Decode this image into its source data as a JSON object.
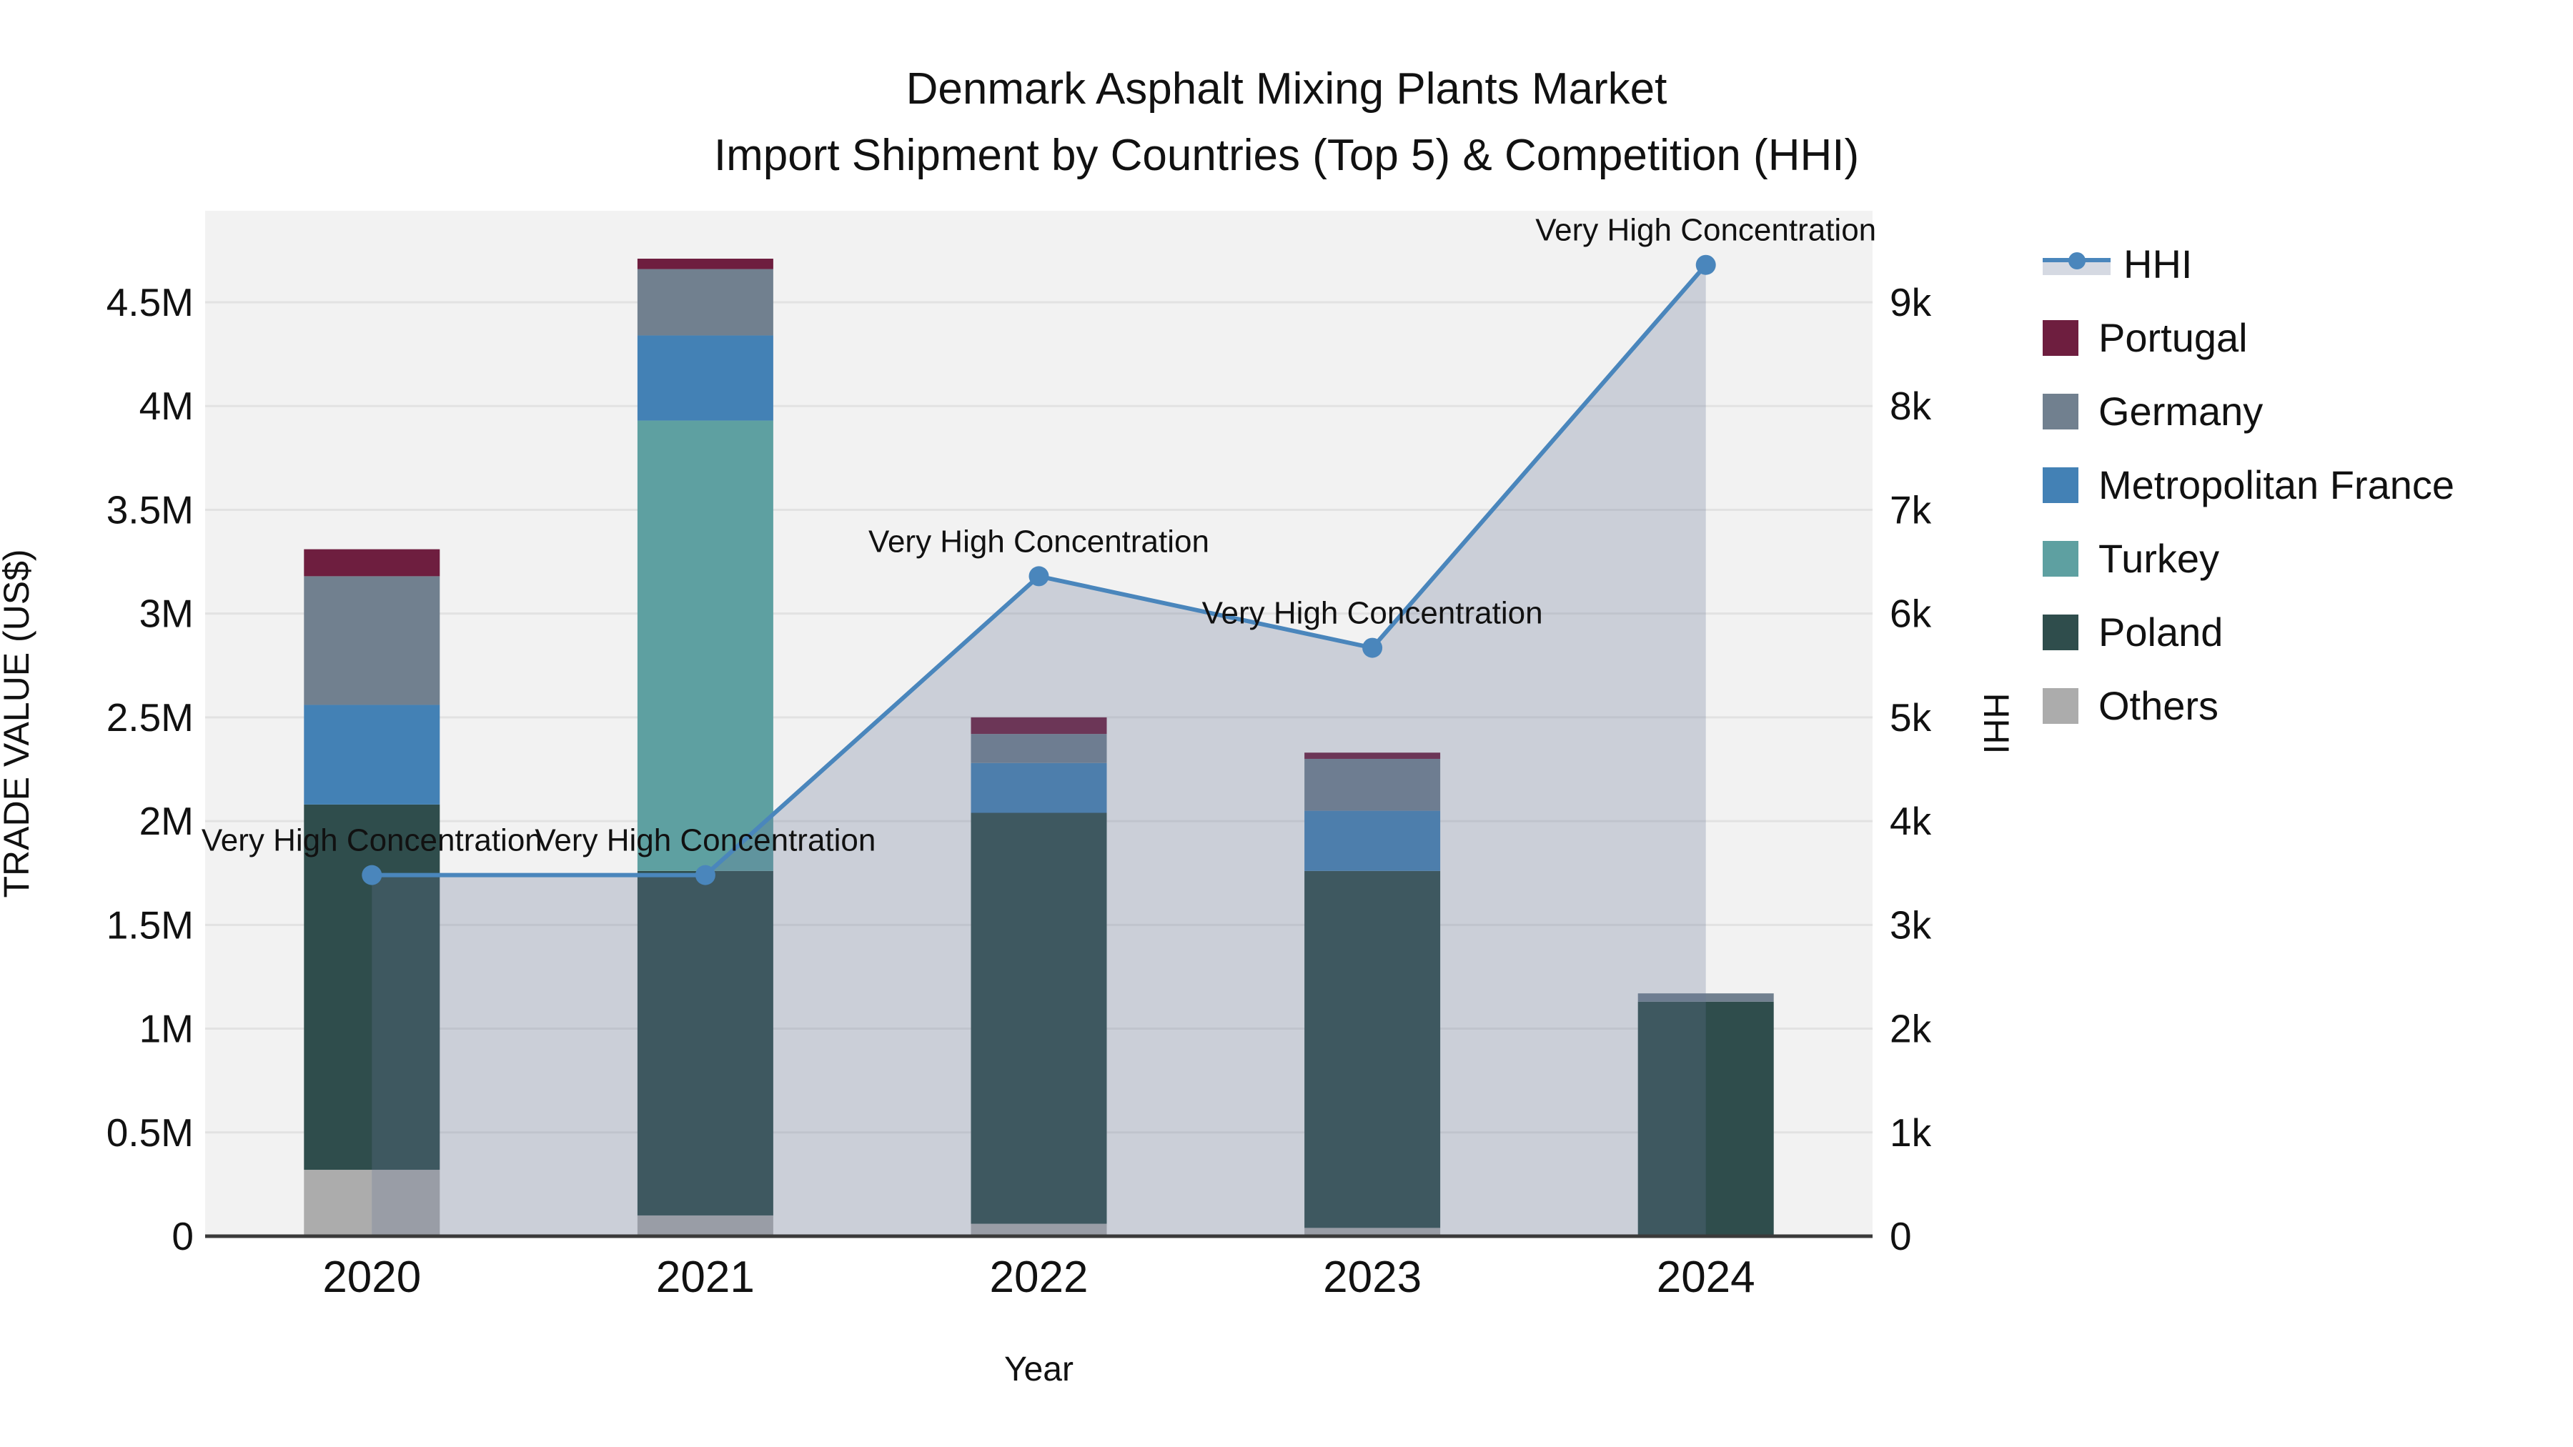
{
  "title": {
    "line1": "Denmark Asphalt Mixing Plants Market",
    "line2": "Import Shipment by Countries (Top 5) & Competition (HHI)"
  },
  "axes": {
    "x": {
      "title": "Year",
      "tick_labels": [
        "2020",
        "2021",
        "2022",
        "2023",
        "2024"
      ]
    },
    "y_left": {
      "title": "TRADE VALUE (US$)",
      "tick_labels": [
        "0",
        "0.5M",
        "1M",
        "1.5M",
        "2M",
        "2.5M",
        "3M",
        "3.5M",
        "4M",
        "4.5M"
      ],
      "tick_values": [
        0,
        500000,
        1000000,
        1500000,
        2000000,
        2500000,
        3000000,
        3500000,
        4000000,
        4500000
      ]
    },
    "y_right": {
      "title": "HHI",
      "tick_labels": [
        "0",
        "1k",
        "2k",
        "3k",
        "4k",
        "5k",
        "6k",
        "7k",
        "8k",
        "9k"
      ],
      "tick_values": [
        0,
        1000,
        2000,
        3000,
        4000,
        5000,
        6000,
        7000,
        8000,
        9000
      ]
    }
  },
  "legend": [
    {
      "label": "HHI",
      "type": "line"
    },
    {
      "label": "Portugal",
      "type": "swatch"
    },
    {
      "label": "Germany",
      "type": "swatch"
    },
    {
      "label": "Metropolitan France",
      "type": "swatch"
    },
    {
      "label": "Turkey",
      "type": "swatch"
    },
    {
      "label": "Poland",
      "type": "swatch"
    },
    {
      "label": "Others",
      "type": "swatch"
    }
  ],
  "colors": {
    "plot_bg": "#f2f2f2",
    "gridline": "#e2e2e2",
    "axis_line": "#3a3a3a",
    "text": "#111111",
    "hhi_line": "#4a86bc",
    "hhi_area_fill": "rgba(105,120,150,0.28)",
    "series": {
      "Portugal": "#6e1e3f",
      "Germany": "#71808f",
      "Metropolitan France": "#4381b5",
      "Turkey": "#5ea0a1",
      "Poland": "#2f4d4c",
      "Others": "#acacac"
    }
  },
  "chart_data": {
    "type": "combo: stacked bar (left axis) + line with area fill (right axis)",
    "categories": [
      "2020",
      "2021",
      "2022",
      "2023",
      "2024"
    ],
    "stack_order_bottom_to_top": [
      "Others",
      "Poland",
      "Turkey",
      "Metropolitan France",
      "Germany",
      "Portugal"
    ],
    "bar_series_trade_value_usd": [
      {
        "name": "Others",
        "values": [
          320000,
          100000,
          60000,
          40000,
          0
        ]
      },
      {
        "name": "Poland",
        "values": [
          1760000,
          1660000,
          1980000,
          1720000,
          1130000
        ]
      },
      {
        "name": "Turkey",
        "values": [
          0,
          2170000,
          0,
          0,
          0
        ]
      },
      {
        "name": "Metropolitan France",
        "values": [
          480000,
          410000,
          240000,
          290000,
          0
        ]
      },
      {
        "name": "Germany",
        "values": [
          620000,
          320000,
          140000,
          250000,
          40000
        ]
      },
      {
        "name": "Portugal",
        "values": [
          130000,
          50000,
          80000,
          30000,
          0
        ]
      }
    ],
    "bar_totals_usd": [
      3310000,
      4710000,
      2500000,
      2330000,
      1170000
    ],
    "hhi_line": {
      "name": "HHI",
      "values": [
        3480,
        3480,
        6360,
        5670,
        9360
      ],
      "annotations": [
        "Very High Concentration",
        "Very High Concentration",
        "Very High Concentration",
        "Very High Concentration",
        "Very High Concentration"
      ]
    },
    "xlabel": "Year",
    "ylabel_left": "TRADE VALUE (US$)",
    "ylabel_right": "HHI",
    "ylim_left": [
      0,
      4940000
    ],
    "ylim_right": [
      0,
      9880
    ],
    "grid": true,
    "legend_position": "right"
  }
}
